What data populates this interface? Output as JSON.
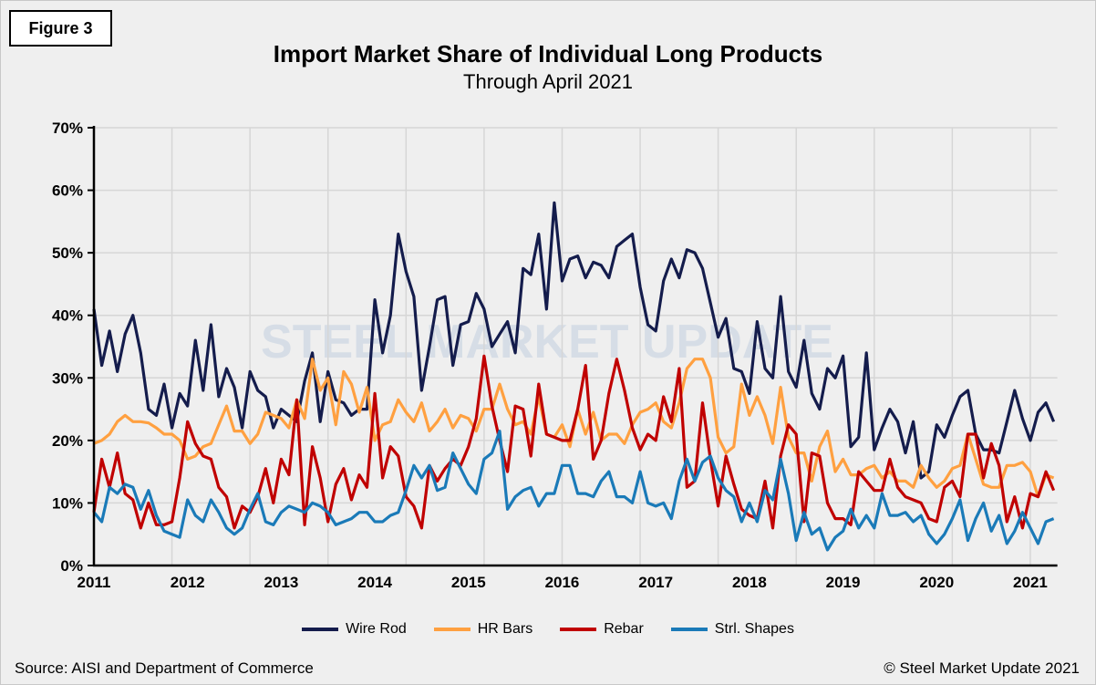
{
  "figure_label": "Figure 3",
  "watermark": "STEEL MARKET UPDATE",
  "footer": {
    "source": "Source: AISI and Department of Commerce",
    "copyright": "© Steel Market Update 2021"
  },
  "chart_data": {
    "type": "line",
    "title": "Import Market Share of Individual Long Products",
    "subtitle": "Through April 2021",
    "xlabel": "",
    "ylabel": "",
    "x_start": "2011-01",
    "x_end": "2021-04",
    "x_frequency": "monthly",
    "x_tick_labels": [
      "2011",
      "2012",
      "2013",
      "2014",
      "2015",
      "2016",
      "2017",
      "2018",
      "2019",
      "2020",
      "2021"
    ],
    "y_tick_labels": [
      "0%",
      "10%",
      "20%",
      "30%",
      "40%",
      "50%",
      "60%",
      "70%"
    ],
    "ylim": [
      0,
      70
    ],
    "grid": true,
    "legend_position": "bottom",
    "series": [
      {
        "name": "Wire Rod",
        "color": "#141c4c",
        "values": [
          41,
          32,
          37.5,
          31,
          37,
          40,
          34,
          25,
          24,
          29,
          22,
          27.5,
          25.5,
          36,
          28,
          38.5,
          27,
          31.5,
          28.5,
          22,
          31,
          28,
          27,
          22,
          25,
          24,
          23,
          29.5,
          34,
          23,
          31,
          26.5,
          26,
          24,
          25,
          25,
          42.5,
          34,
          40,
          53,
          47,
          43,
          28,
          35,
          42.5,
          43,
          32,
          38.5,
          39,
          43.5,
          41,
          35,
          37,
          39,
          34,
          47.5,
          46.5,
          53,
          41,
          58,
          45.5,
          49,
          49.5,
          46,
          48.5,
          48,
          46,
          51,
          52,
          53,
          44.5,
          38.5,
          37.5,
          45.5,
          49,
          46,
          50.5,
          50,
          47.5,
          42,
          36.5,
          39.5,
          31.5,
          31,
          27.5,
          39,
          31.5,
          30,
          43,
          31,
          28.5,
          36,
          27.5,
          25,
          31.5,
          30,
          33.5,
          19,
          20.5,
          34,
          18.5,
          22,
          25,
          23,
          18,
          23,
          14,
          15,
          22.5,
          20.5,
          24,
          27,
          28,
          21,
          18.5,
          18.5,
          18,
          23,
          28,
          23.5,
          20,
          24.5,
          26,
          23
        ]
      },
      {
        "name": "HR Bars",
        "color": "#ffa040",
        "values": [
          19.5,
          20,
          21,
          23,
          24,
          23,
          23,
          22.8,
          22,
          21,
          21,
          20,
          17,
          17.5,
          19,
          19.5,
          22.5,
          25.5,
          21.5,
          21.5,
          19.5,
          21,
          24.5,
          24,
          23.5,
          22,
          26.5,
          23.5,
          33,
          28,
          30,
          22.5,
          31,
          29,
          24.5,
          28.5,
          20,
          22.5,
          23,
          26.5,
          24.5,
          23,
          26,
          21.5,
          23,
          25,
          22,
          24,
          23.5,
          21.5,
          25,
          25,
          29,
          25,
          22.5,
          23,
          21,
          27,
          21,
          20.5,
          22.5,
          19,
          25,
          21,
          24.5,
          20,
          21,
          21,
          19.5,
          22.5,
          24.5,
          25,
          26,
          23,
          22,
          26,
          31.5,
          33,
          33,
          30,
          20.5,
          18,
          19,
          29,
          24,
          27,
          24,
          19.5,
          28.5,
          20.5,
          18,
          18,
          13.5,
          19,
          21.5,
          15,
          17,
          14.5,
          14.5,
          15.5,
          16,
          14,
          15,
          13.5,
          13.5,
          12.5,
          16,
          14,
          12.5,
          13.5,
          15.5,
          16,
          21,
          17,
          13,
          12.5,
          12.5,
          16,
          16,
          16.5,
          15,
          11,
          14.5,
          14
        ]
      },
      {
        "name": "Rebar",
        "color": "#c00000",
        "values": [
          8.5,
          17,
          12.5,
          18,
          11.5,
          10.5,
          6,
          10,
          6.5,
          6.5,
          7,
          14,
          23,
          19.5,
          17.5,
          17,
          12.5,
          11,
          6,
          9.5,
          8.5,
          11,
          15.5,
          10,
          17,
          14.5,
          26.5,
          6.5,
          19,
          14,
          7,
          13,
          15.5,
          10.5,
          14.5,
          12.5,
          27.5,
          14,
          19,
          17.5,
          11,
          9.5,
          6,
          16,
          13.5,
          15.5,
          17,
          16,
          19,
          23.5,
          33.5,
          25.5,
          20,
          15,
          25.5,
          25,
          17.5,
          29,
          21,
          20.5,
          20,
          20,
          25,
          32,
          17,
          20,
          27.5,
          33,
          28,
          22,
          18.5,
          21,
          20,
          27,
          23,
          31.5,
          12.5,
          13.5,
          26,
          17,
          9.5,
          17.5,
          13,
          9,
          8,
          7.5,
          13.5,
          6,
          17.5,
          22.5,
          21,
          7,
          18,
          17.5,
          10,
          7.5,
          7.5,
          6.5,
          15,
          13.5,
          12,
          12,
          17,
          12.5,
          11,
          10.5,
          10,
          7.5,
          7,
          12.5,
          13.5,
          11,
          21,
          21,
          14,
          19.5,
          16,
          7,
          11,
          6,
          11.5,
          11,
          15,
          12
        ]
      },
      {
        "name": "Strl. Shapes",
        "color": "#1a7ab8",
        "values": [
          8.5,
          7,
          12.5,
          11.5,
          13,
          12.5,
          9,
          12,
          8,
          5.5,
          5,
          4.5,
          10.5,
          8,
          7,
          10.5,
          8.5,
          6,
          5,
          6,
          9,
          11.5,
          7,
          6.5,
          8.5,
          9.5,
          9,
          8.5,
          10,
          9.5,
          8.5,
          6.5,
          7,
          7.5,
          8.5,
          8.5,
          7,
          7,
          8,
          8.5,
          12,
          16,
          14,
          16,
          12,
          12.5,
          18,
          15.5,
          13,
          11.5,
          17,
          18,
          21.5,
          9,
          11,
          12,
          12.5,
          9.5,
          11.5,
          11.5,
          16,
          16,
          11.5,
          11.5,
          11,
          13.5,
          15,
          11,
          11,
          10,
          15,
          10,
          9.5,
          10,
          7.5,
          13.5,
          17,
          13.5,
          16.5,
          17.5,
          14,
          12,
          11,
          7,
          10,
          7,
          12,
          10.5,
          17,
          11.5,
          4,
          8.5,
          5,
          6,
          2.5,
          4.5,
          5.5,
          9,
          6,
          8,
          6,
          11.5,
          8,
          8,
          8.5,
          7,
          8,
          5,
          3.5,
          5,
          7.5,
          10.5,
          4,
          7.5,
          10,
          5.5,
          8,
          3.5,
          5.5,
          8.5,
          6,
          3.5,
          7,
          7.5
        ]
      }
    ]
  }
}
